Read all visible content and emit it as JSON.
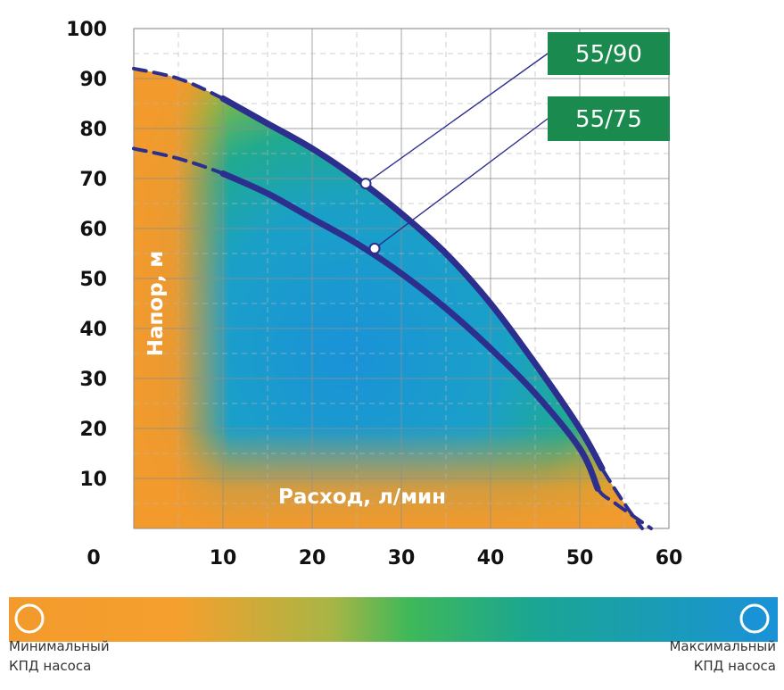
{
  "chart_data": {
    "type": "line",
    "x_ticks": [
      "0",
      "10",
      "20",
      "30",
      "40",
      "50",
      "60"
    ],
    "y_ticks": [
      "10",
      "20",
      "30",
      "40",
      "50",
      "60",
      "70",
      "80",
      "90",
      "100"
    ],
    "xlim": [
      0,
      60
    ],
    "ylim": [
      0,
      100
    ],
    "xlabel": "Расход, л/мин",
    "ylabel": "Напор, м",
    "grid": true,
    "background": "efficiency heat map (orange = minimal efficiency, blue = maximal efficiency)",
    "series": [
      {
        "name": "55/90",
        "x": [
          0,
          5,
          10,
          15,
          20,
          25,
          30,
          35,
          40,
          45,
          50,
          52.5,
          55,
          57
        ],
        "y": [
          92,
          90,
          86,
          81,
          76,
          70,
          63,
          55,
          45,
          33,
          20,
          12,
          5,
          0
        ],
        "color": "#2d2f8f"
      },
      {
        "name": "55/75",
        "x": [
          0,
          5,
          10,
          15,
          20,
          25,
          30,
          35,
          40,
          45,
          50,
          52,
          54,
          58
        ],
        "y": [
          76,
          74,
          71,
          67,
          62,
          57,
          51,
          44,
          36,
          27,
          16,
          8,
          5,
          0
        ],
        "color": "#2d2f8f"
      }
    ],
    "callout_points": [
      {
        "series": "55/90",
        "x": 26,
        "y": 69
      },
      {
        "series": "55/75",
        "x": 27,
        "y": 56
      }
    ],
    "colors": {
      "curve": "#2d2f8f",
      "badge": "#1a8a4f",
      "min_efficiency": "#f39a2c",
      "mid_efficiency": "#40b556",
      "max_efficiency": "#1a92d8",
      "grid": "#9a9a9a"
    },
    "legend": {
      "min_label_line1": "Минимальный",
      "min_label_line2": "КПД насоса",
      "max_label_line1": "Максимальный",
      "max_label_line2": "КПД насоса"
    }
  }
}
